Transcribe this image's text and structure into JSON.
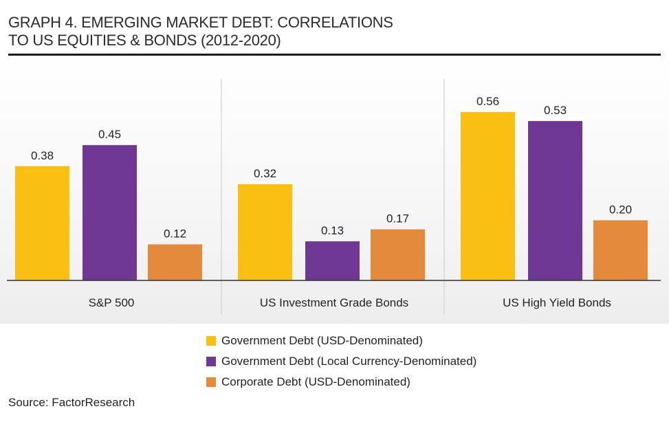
{
  "title": {
    "line1": "GRAPH 4.  EMERGING MARKET DEBT: CORRELATIONS",
    "line2": "TO US EQUITIES & BONDS (2012-2020)"
  },
  "chart_data": {
    "type": "bar",
    "categories": [
      "S&P 500",
      "US Investment Grade Bonds",
      "US High Yield Bonds"
    ],
    "series": [
      {
        "name": "Government Debt (USD-Denominated)",
        "color": "#f9bf12",
        "values": [
          0.38,
          0.32,
          0.56
        ],
        "labels": [
          "0.38",
          "0.32",
          "0.56"
        ]
      },
      {
        "name": "Government Debt (Local Currency-Denominated)",
        "color": "#6e3894",
        "values": [
          0.45,
          0.13,
          0.53
        ],
        "labels": [
          "0.45",
          "0.13",
          "0.53"
        ]
      },
      {
        "name": "Corporate Debt  (USD-Denominated)",
        "color": "#e38a3c",
        "values": [
          0.12,
          0.17,
          0.2
        ],
        "labels": [
          "0.12",
          "0.17",
          "0.20"
        ]
      }
    ],
    "ylim": [
      0,
      0.6
    ],
    "legend_position": "bottom-center"
  },
  "source": "Source: FactorResearch"
}
